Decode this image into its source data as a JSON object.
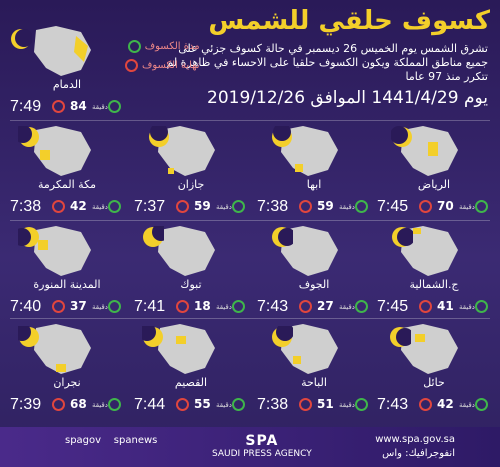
{
  "header": {
    "title": "كسوف حلقي للشمس",
    "desc": "تشرق الشمس يوم الخميس 26 ديسمبر في حالة كسوف جزئي على جميع مناطق المملكة ويكون الكسوف حلقيا على الاحساء في ظاهرة لم تتكرر منذ 97 عاما",
    "date": "يوم 1441/4/29 الموافق 2019/12/26"
  },
  "legend": {
    "duration": "مدة الكسوف",
    "end": "نهاية الكسوف"
  },
  "cities": [
    {
      "name": "الدمام",
      "time": "7:49",
      "dur": "84"
    },
    {
      "name": "الرياض",
      "time": "7:45",
      "dur": "70"
    },
    {
      "name": "ابها",
      "time": "7:38",
      "dur": "59"
    },
    {
      "name": "جازان",
      "time": "7:37",
      "dur": "59"
    },
    {
      "name": "مكة المكرمة",
      "time": "7:38",
      "dur": "42"
    },
    {
      "name": "ج.الشمالية",
      "time": "7:45",
      "dur": "41"
    },
    {
      "name": "الجوف",
      "time": "7:43",
      "dur": "27"
    },
    {
      "name": "تبوك",
      "time": "7:41",
      "dur": "18"
    },
    {
      "name": "المدينة المنورة",
      "time": "7:40",
      "dur": "37"
    },
    {
      "name": "حائل",
      "time": "7:43",
      "dur": "42"
    },
    {
      "name": "الباحة",
      "time": "7:38",
      "dur": "51"
    },
    {
      "name": "القصيم",
      "time": "7:44",
      "dur": "55"
    },
    {
      "name": "نجران",
      "time": "7:39",
      "dur": "68"
    }
  ],
  "dur_label": "دقيقة",
  "footer": {
    "social1": "spagov",
    "social2": "spanews",
    "spa": "SPA",
    "spa_sub": "SAUDI PRESS AGENCY",
    "web": "www.spa.gov.sa",
    "web2": "انفوجرافيك: واس"
  }
}
